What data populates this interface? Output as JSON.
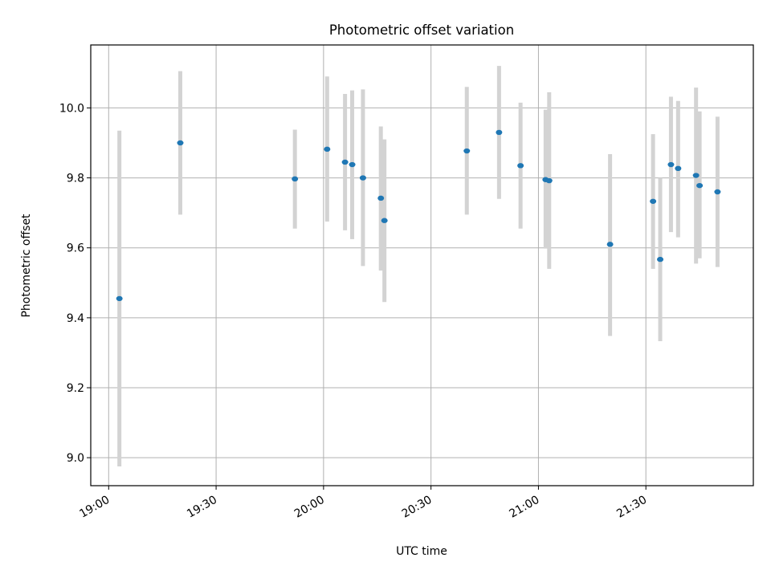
{
  "chart_data": {
    "type": "scatter",
    "title": "Photometric offset variation",
    "xlabel": "UTC time",
    "ylabel": "Photometric offset",
    "x_ticks": [
      "19:00",
      "19:30",
      "20:00",
      "20:30",
      "21:00",
      "21:30"
    ],
    "y_ticks": [
      "9.0",
      "9.2",
      "9.4",
      "9.6",
      "9.8",
      "10.0"
    ],
    "xlim": [
      "18:55",
      "22:00"
    ],
    "ylim": [
      8.92,
      10.18
    ],
    "grid": true,
    "errorbar_color": "#d3d3d3",
    "marker_color": "#1f77b4",
    "points": [
      {
        "t": "19:03",
        "y": 9.455,
        "lo": 8.975,
        "hi": 9.935
      },
      {
        "t": "19:20",
        "y": 9.9,
        "lo": 9.695,
        "hi": 10.105
      },
      {
        "t": "19:52",
        "y": 9.797,
        "lo": 9.655,
        "hi": 9.938
      },
      {
        "t": "20:01",
        "y": 9.882,
        "lo": 9.675,
        "hi": 10.09
      },
      {
        "t": "20:06",
        "y": 9.845,
        "lo": 9.65,
        "hi": 10.04
      },
      {
        "t": "20:08",
        "y": 9.838,
        "lo": 9.625,
        "hi": 10.05
      },
      {
        "t": "20:11",
        "y": 9.8,
        "lo": 9.548,
        "hi": 10.053
      },
      {
        "t": "20:16",
        "y": 9.742,
        "lo": 9.535,
        "hi": 9.947
      },
      {
        "t": "20:17",
        "y": 9.678,
        "lo": 9.445,
        "hi": 9.91
      },
      {
        "t": "20:40",
        "y": 9.877,
        "lo": 9.695,
        "hi": 10.06
      },
      {
        "t": "20:49",
        "y": 9.93,
        "lo": 9.74,
        "hi": 10.12
      },
      {
        "t": "20:55",
        "y": 9.835,
        "lo": 9.655,
        "hi": 10.015
      },
      {
        "t": "21:02",
        "y": 9.795,
        "lo": 9.598,
        "hi": 9.995
      },
      {
        "t": "21:03",
        "y": 9.792,
        "lo": 9.54,
        "hi": 10.045
      },
      {
        "t": "21:20",
        "y": 9.61,
        "lo": 9.348,
        "hi": 9.868
      },
      {
        "t": "21:32",
        "y": 9.733,
        "lo": 9.54,
        "hi": 9.925
      },
      {
        "t": "21:34",
        "y": 9.567,
        "lo": 9.333,
        "hi": 9.8
      },
      {
        "t": "21:37",
        "y": 9.838,
        "lo": 9.645,
        "hi": 10.032
      },
      {
        "t": "21:39",
        "y": 9.827,
        "lo": 9.63,
        "hi": 10.02
      },
      {
        "t": "21:44",
        "y": 9.807,
        "lo": 9.555,
        "hi": 10.058
      },
      {
        "t": "21:45",
        "y": 9.778,
        "lo": 9.57,
        "hi": 9.99
      },
      {
        "t": "21:50",
        "y": 9.76,
        "lo": 9.545,
        "hi": 9.975
      }
    ]
  }
}
